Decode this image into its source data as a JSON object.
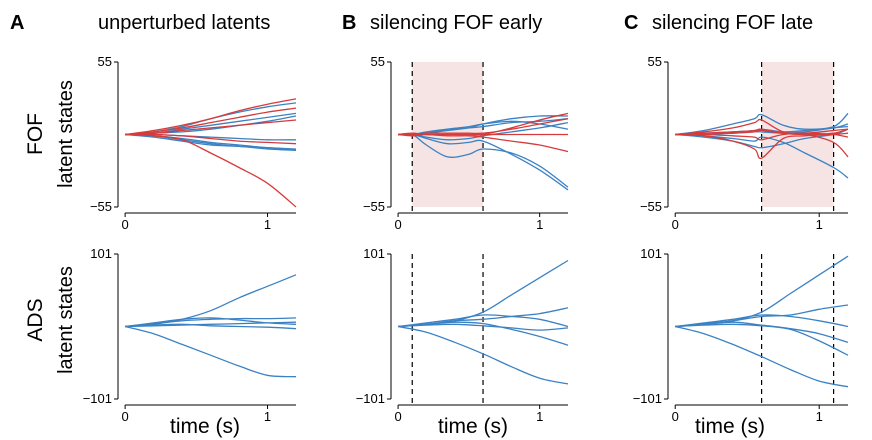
{
  "panels": [
    {
      "letter": "A",
      "title": "unperturbed latents"
    },
    {
      "letter": "B",
      "title": "silencing FOF early"
    },
    {
      "letter": "C",
      "title": "silencing FOF late"
    }
  ],
  "rows": [
    {
      "region": "FOF",
      "sublabel": "latent states"
    },
    {
      "region": "ADS",
      "sublabel": "latent states"
    }
  ],
  "xlabel": "time (s)",
  "colors": {
    "blue": "#3b82c4",
    "red": "#d63b3b",
    "shade": "#f6e3e3",
    "dash": "#000000"
  },
  "chart_data": [
    {
      "type": "line",
      "panel": "A",
      "row": "FOF",
      "xlim": [
        -0.05,
        1.2
      ],
      "ylim": [
        -55,
        55
      ],
      "ytick_labels": [
        "55",
        "−55"
      ],
      "xtick_labels": [
        "0",
        "1"
      ],
      "x": [
        0,
        0.2,
        0.4,
        0.6,
        0.8,
        1.0,
        1.2
      ],
      "silencing": null,
      "series": [
        {
          "color": "blue",
          "values": [
            0,
            2,
            6,
            12,
            17,
            21,
            24
          ]
        },
        {
          "color": "blue",
          "values": [
            0,
            1,
            4,
            7,
            10,
            13,
            16
          ]
        },
        {
          "color": "blue",
          "values": [
            0,
            1,
            2,
            4,
            7,
            10,
            14
          ]
        },
        {
          "color": "blue",
          "values": [
            0,
            -1,
            -3,
            -6,
            -8,
            -10,
            -11
          ]
        },
        {
          "color": "blue",
          "values": [
            0,
            -2,
            -5,
            -8,
            -9,
            -11,
            -12
          ]
        },
        {
          "color": "blue",
          "values": [
            0,
            -1,
            -4,
            -7,
            -9,
            -10,
            -12
          ]
        },
        {
          "color": "blue",
          "values": [
            0,
            0,
            -1,
            -2,
            -3,
            -4,
            -4
          ]
        },
        {
          "color": "red",
          "values": [
            0,
            3,
            7,
            12,
            18,
            23,
            27
          ]
        },
        {
          "color": "red",
          "values": [
            0,
            2,
            5,
            9,
            13,
            17,
            20
          ]
        },
        {
          "color": "red",
          "values": [
            0,
            -1,
            -4,
            -14,
            -25,
            -37,
            -55
          ]
        },
        {
          "color": "red",
          "values": [
            0,
            0,
            -1,
            -3,
            -5,
            -6,
            -7
          ]
        },
        {
          "color": "red",
          "values": [
            0,
            1,
            3,
            5,
            7,
            9,
            11
          ]
        }
      ]
    },
    {
      "type": "line",
      "panel": "B",
      "row": "FOF",
      "xlim": [
        -0.05,
        1.2
      ],
      "ylim": [
        -55,
        55
      ],
      "ytick_labels": [
        "55",
        "−55"
      ],
      "xtick_labels": [
        "0",
        "1"
      ],
      "x": [
        0,
        0.1,
        0.2,
        0.35,
        0.5,
        0.6,
        0.8,
        1.0,
        1.2
      ],
      "silencing": [
        0.1,
        0.6
      ],
      "series": [
        {
          "color": "blue",
          "values": [
            0,
            0,
            -8,
            -17,
            -15,
            -11,
            -14,
            -24,
            -40
          ]
        },
        {
          "color": "blue",
          "values": [
            0,
            0,
            -3,
            -7,
            -6,
            -5,
            -15,
            -27,
            -42
          ]
        },
        {
          "color": "blue",
          "values": [
            0,
            0,
            1,
            4,
            6,
            8,
            10,
            8,
            4
          ]
        },
        {
          "color": "blue",
          "values": [
            0,
            0,
            2,
            4,
            5,
            6,
            9,
            10,
            12
          ]
        },
        {
          "color": "blue",
          "values": [
            0,
            0,
            -2,
            -4,
            -3,
            -1,
            2,
            5,
            9
          ]
        },
        {
          "color": "blue",
          "values": [
            0,
            0,
            1,
            3,
            5,
            8,
            12,
            14,
            14
          ]
        },
        {
          "color": "red",
          "values": [
            0,
            1,
            0,
            0,
            0,
            0,
            5,
            11,
            16
          ]
        },
        {
          "color": "red",
          "values": [
            0,
            0,
            0,
            -1,
            -1,
            -2,
            -5,
            -8,
            -13
          ]
        },
        {
          "color": "red",
          "values": [
            0,
            0,
            1,
            1,
            1,
            1,
            4,
            8,
            12
          ]
        },
        {
          "color": "red",
          "values": [
            0,
            -1,
            0,
            0,
            0,
            0,
            0,
            0,
            0
          ]
        }
      ]
    },
    {
      "type": "line",
      "panel": "C",
      "row": "FOF",
      "xlim": [
        -0.05,
        1.2
      ],
      "ylim": [
        -55,
        55
      ],
      "ytick_labels": [
        "55",
        "−55"
      ],
      "xtick_labels": [
        "0",
        "1"
      ],
      "x": [
        0,
        0.2,
        0.4,
        0.55,
        0.6,
        0.75,
        0.9,
        1.1,
        1.2
      ],
      "silencing": [
        0.6,
        1.1
      ],
      "series": [
        {
          "color": "blue",
          "values": [
            0,
            3,
            8,
            12,
            15,
            7,
            4,
            6,
            16
          ]
        },
        {
          "color": "blue",
          "values": [
            0,
            1,
            2,
            3,
            4,
            2,
            3,
            5,
            8
          ]
        },
        {
          "color": "blue",
          "values": [
            0,
            -1,
            -3,
            -5,
            -2,
            -6,
            -14,
            -25,
            -33
          ]
        },
        {
          "color": "blue",
          "values": [
            0,
            -2,
            -5,
            -9,
            -10,
            -7,
            -3,
            0,
            4
          ]
        },
        {
          "color": "blue",
          "values": [
            0,
            0,
            1,
            2,
            2,
            1,
            2,
            5,
            6
          ]
        },
        {
          "color": "red",
          "values": [
            0,
            2,
            5,
            9,
            11,
            2,
            1,
            3,
            4
          ]
        },
        {
          "color": "red",
          "values": [
            0,
            -1,
            -5,
            -11,
            -18,
            -3,
            -1,
            0,
            1
          ]
        },
        {
          "color": "red",
          "values": [
            0,
            1,
            1,
            2,
            3,
            1,
            1,
            0,
            -2
          ]
        },
        {
          "color": "red",
          "values": [
            0,
            0,
            -1,
            -2,
            -4,
            0,
            0,
            -6,
            -17
          ]
        },
        {
          "color": "red",
          "values": [
            0,
            1,
            2,
            3,
            4,
            1,
            0,
            1,
            4
          ]
        }
      ]
    },
    {
      "type": "line",
      "panel": "A",
      "row": "ADS",
      "xlim": [
        -0.05,
        1.2
      ],
      "ylim": [
        -101,
        101
      ],
      "ytick_labels": [
        "101",
        "−101"
      ],
      "xtick_labels": [
        "0",
        "1"
      ],
      "x": [
        0,
        0.2,
        0.4,
        0.6,
        0.8,
        1.0,
        1.2
      ],
      "silencing": null,
      "series": [
        {
          "color": "blue",
          "values": [
            0,
            3,
            10,
            22,
            40,
            56,
            72
          ]
        },
        {
          "color": "blue",
          "values": [
            0,
            4,
            8,
            10,
            11,
            11,
            12
          ]
        },
        {
          "color": "blue",
          "values": [
            0,
            5,
            10,
            12,
            9,
            5,
            3
          ]
        },
        {
          "color": "blue",
          "values": [
            0,
            2,
            3,
            1,
            0,
            -1,
            -3
          ]
        },
        {
          "color": "blue",
          "values": [
            0,
            -10,
            -25,
            -40,
            -55,
            -68,
            -70
          ]
        },
        {
          "color": "blue",
          "values": [
            0,
            1,
            2,
            3,
            4,
            5,
            6
          ]
        }
      ]
    },
    {
      "type": "line",
      "panel": "B",
      "row": "ADS",
      "xlim": [
        -0.05,
        1.2
      ],
      "ylim": [
        -101,
        101
      ],
      "ytick_labels": [
        "101",
        "−101"
      ],
      "xtick_labels": [
        "0",
        "1"
      ],
      "x": [
        0,
        0.2,
        0.4,
        0.6,
        0.8,
        1.0,
        1.2
      ],
      "silencing": [
        0.1,
        0.6
      ],
      "series": [
        {
          "color": "blue",
          "values": [
            0,
            3,
            8,
            20,
            44,
            68,
            92
          ]
        },
        {
          "color": "blue",
          "values": [
            0,
            3,
            8,
            10,
            14,
            18,
            26
          ]
        },
        {
          "color": "blue",
          "values": [
            0,
            5,
            10,
            16,
            14,
            10,
            0
          ]
        },
        {
          "color": "blue",
          "values": [
            0,
            3,
            6,
            4,
            -4,
            -14,
            -26
          ]
        },
        {
          "color": "blue",
          "values": [
            0,
            2,
            3,
            1,
            -2,
            -5,
            -2
          ]
        },
        {
          "color": "blue",
          "values": [
            0,
            -8,
            -22,
            -38,
            -56,
            -72,
            -80
          ]
        }
      ]
    },
    {
      "type": "line",
      "panel": "C",
      "row": "ADS",
      "xlim": [
        -0.05,
        1.2
      ],
      "ylim": [
        -101,
        101
      ],
      "ytick_labels": [
        "101",
        "−101"
      ],
      "xtick_labels": [
        "0",
        "1"
      ],
      "x": [
        0,
        0.2,
        0.4,
        0.6,
        0.8,
        1.0,
        1.2
      ],
      "silencing": [
        0.6,
        1.1
      ],
      "series": [
        {
          "color": "blue",
          "values": [
            0,
            3,
            8,
            20,
            46,
            72,
            98
          ]
        },
        {
          "color": "blue",
          "values": [
            0,
            4,
            8,
            14,
            16,
            24,
            30
          ]
        },
        {
          "color": "blue",
          "values": [
            0,
            5,
            10,
            16,
            14,
            8,
            0
          ]
        },
        {
          "color": "blue",
          "values": [
            0,
            3,
            6,
            2,
            -3,
            -10,
            -22
          ]
        },
        {
          "color": "blue",
          "values": [
            0,
            2,
            3,
            1,
            -4,
            -20,
            -40
          ]
        },
        {
          "color": "blue",
          "values": [
            0,
            -10,
            -25,
            -42,
            -60,
            -76,
            -84
          ]
        }
      ]
    }
  ]
}
